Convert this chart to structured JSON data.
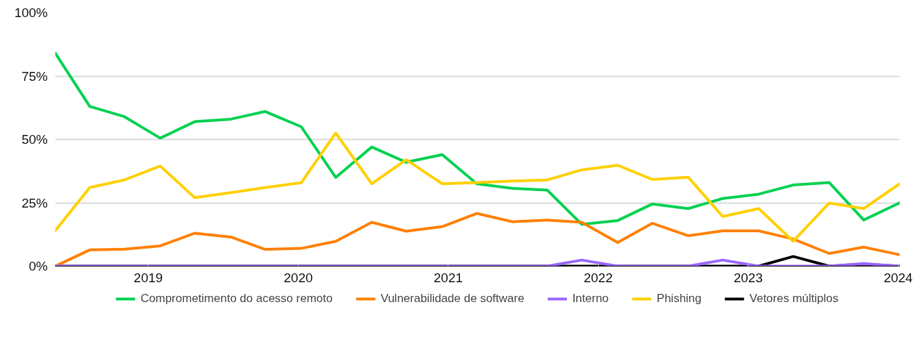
{
  "chart_data": {
    "type": "line",
    "x": [
      2018.38,
      2018.61,
      2018.84,
      2019.08,
      2019.31,
      2019.55,
      2019.78,
      2020.02,
      2020.25,
      2020.49,
      2020.72,
      2020.96,
      2021.19,
      2021.43,
      2021.66,
      2021.89,
      2022.13,
      2022.36,
      2022.6,
      2022.83,
      2023.07,
      2023.3,
      2023.54,
      2023.77,
      2024.01
    ],
    "xlim": [
      2018.38,
      2024.01
    ],
    "xticks": [
      2019,
      2020,
      2021,
      2022,
      2023,
      2024
    ],
    "ylim": [
      0,
      100
    ],
    "yticks": [
      {
        "value": 0,
        "label": "0%"
      },
      {
        "value": 25,
        "label": "25%"
      },
      {
        "value": 50,
        "label": "50%"
      },
      {
        "value": 75,
        "label": "75%"
      },
      {
        "value": 100,
        "label": "100%"
      }
    ],
    "grid": "y",
    "legend": "bottom",
    "line_style": "solid",
    "series": [
      {
        "name": "Vetores múltiplos",
        "color": "#000000",
        "values": [
          0,
          0,
          0,
          0,
          0,
          0,
          0,
          0,
          0,
          0,
          0,
          0,
          0,
          0,
          0,
          0,
          0,
          0,
          0,
          0,
          0,
          3.8,
          0,
          0.8,
          0
        ]
      },
      {
        "name": "Comprometimento do acesso remoto",
        "color": "#00d150",
        "values": [
          84,
          63,
          59,
          50.5,
          57,
          58,
          61,
          55,
          35,
          47,
          41,
          44,
          32.5,
          30.7,
          30,
          16.5,
          18,
          24.5,
          22.7,
          26.7,
          28.4,
          32,
          33,
          18.2,
          25
        ]
      },
      {
        "name": "Vulnerabilidade de software",
        "color": "#ff8000",
        "values": [
          0,
          6.4,
          6.7,
          8,
          13,
          11.5,
          6.6,
          7,
          9.8,
          17.3,
          13.8,
          15.6,
          20.8,
          17.5,
          18.2,
          17.3,
          9.3,
          16.9,
          12,
          13.9,
          13.9,
          10.7,
          5,
          7.5,
          4.5
        ]
      },
      {
        "name": "Interno",
        "color": "#9966ff",
        "values": [
          0,
          0,
          0,
          0,
          0,
          0,
          0,
          0,
          0,
          0,
          0,
          0,
          0,
          0,
          0,
          2.4,
          0,
          0,
          0,
          2.4,
          0,
          0,
          0,
          1,
          0
        ]
      },
      {
        "name": "Phishing",
        "color": "#ffd000",
        "values": [
          14,
          31,
          34,
          39.5,
          27,
          29,
          31,
          32.9,
          52.5,
          32.5,
          42,
          32.5,
          33,
          33.6,
          34,
          38,
          39.8,
          34.2,
          35.1,
          19.6,
          22.7,
          9.8,
          24.9,
          22.7,
          32.5
        ]
      }
    ]
  }
}
